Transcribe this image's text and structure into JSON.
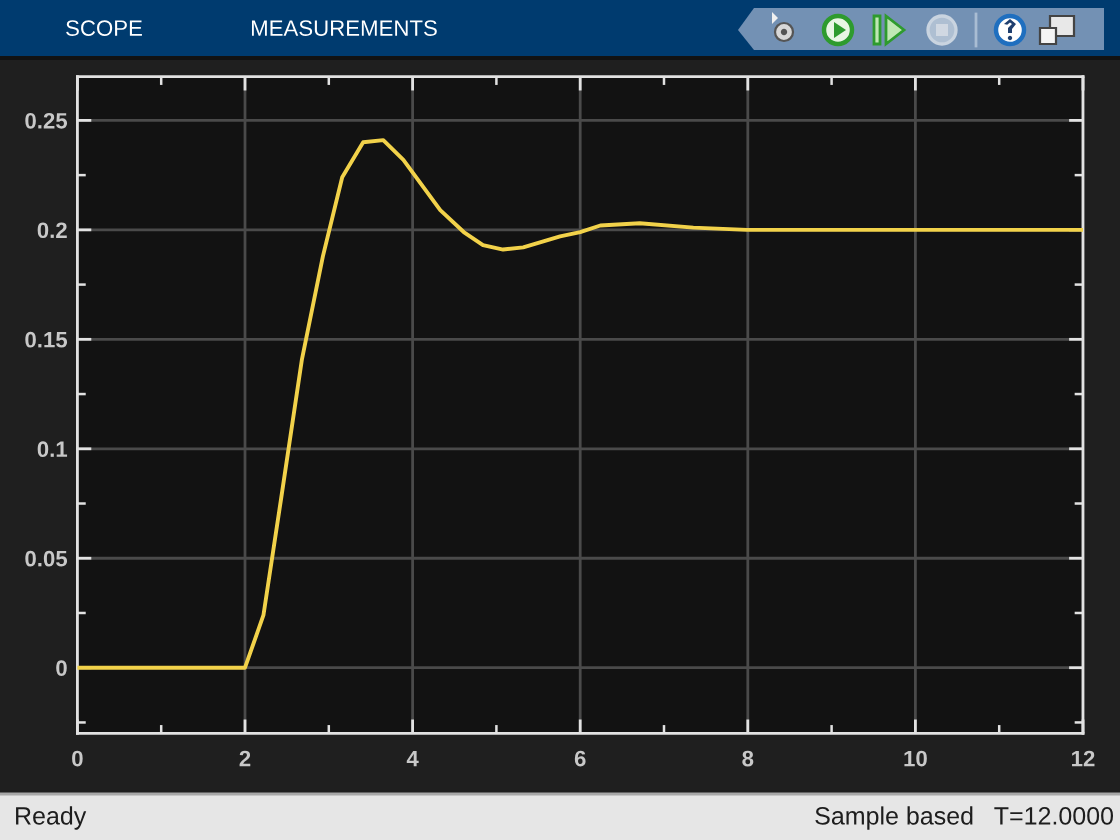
{
  "chart_data": {
    "type": "line",
    "x": [
      0,
      2,
      2.22,
      2.43,
      2.68,
      2.93,
      3.16,
      3.41,
      3.65,
      3.89,
      4.33,
      4.61,
      4.84,
      5.08,
      5.32,
      5.76,
      6.0,
      6.24,
      6.71,
      7.35,
      7.99,
      8.46,
      9.1,
      12
    ],
    "values": [
      0,
      0,
      0.024,
      0.077,
      0.141,
      0.188,
      0.224,
      0.24,
      0.241,
      0.232,
      0.209,
      0.199,
      0.193,
      0.191,
      0.192,
      0.197,
      0.199,
      0.202,
      0.203,
      0.201,
      0.2,
      0.2,
      0.2,
      0.2
    ],
    "color": "#f2d24a",
    "xlim": [
      0,
      12
    ],
    "xticks": [
      0,
      2,
      4,
      6,
      8,
      10,
      12
    ],
    "ylim": [
      -0.03,
      0.27
    ],
    "yticks": [
      0,
      0.05,
      0.1,
      0.15,
      0.2,
      0.25
    ],
    "grid": true,
    "annotations": [
      "SCOPE",
      "MEASUREMENTS",
      "Ready",
      "Sample based",
      "T=12.0000"
    ]
  }
}
